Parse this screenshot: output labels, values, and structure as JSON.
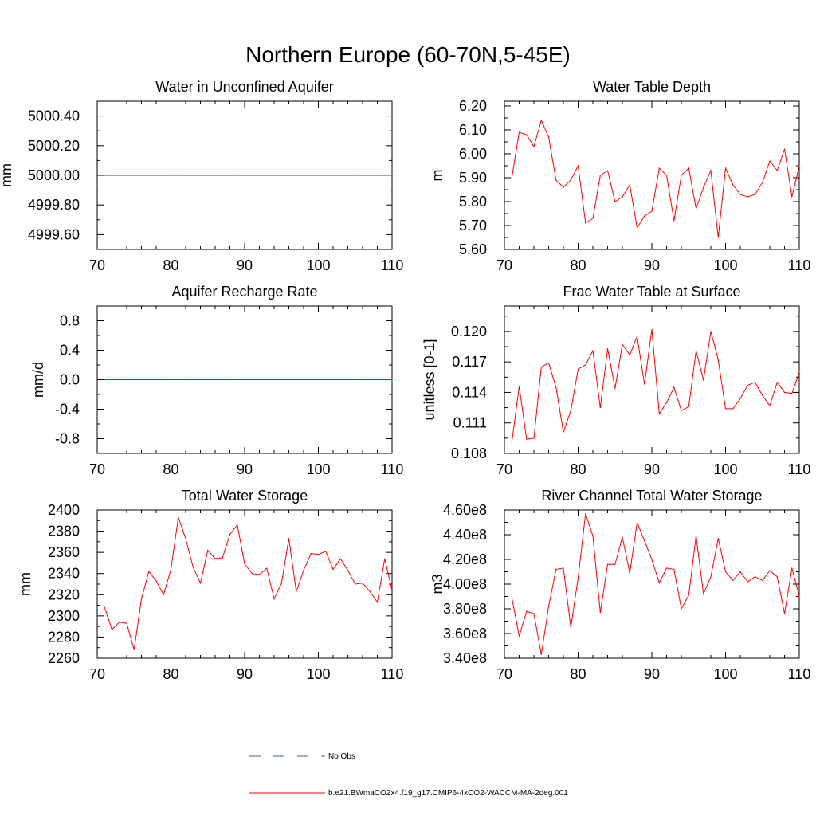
{
  "figure": {
    "title": "Northern Europe (60-70N,5-45E)"
  },
  "legend": {
    "entries": [
      {
        "label": "No Obs",
        "color": "#3f5fbf",
        "dash": "dashed"
      },
      {
        "label": "b.e21.BWmaCO2x4.f19_g17.CMIP6-4xCO2-WACCM-MA-2deg.001",
        "color": "#ff0000",
        "dash": "solid"
      }
    ]
  },
  "chart_data": [
    {
      "type": "line",
      "title": "Water in Unconfined Aquifer",
      "ylabel": "mm",
      "xlabel": "",
      "xlim": [
        70,
        110
      ],
      "ylim": [
        4999.5,
        5000.5
      ],
      "xticks": [
        "70",
        "80",
        "90",
        "100",
        "110"
      ],
      "yticks": [
        {
          "v": 4999.6,
          "label": "4999.60"
        },
        {
          "v": 4999.8,
          "label": "4999.80"
        },
        {
          "v": 5000.0,
          "label": "5000.00"
        },
        {
          "v": 5000.2,
          "label": "5000.20"
        },
        {
          "v": 5000.4,
          "label": "5000.40"
        }
      ],
      "series": [
        {
          "color": "#ff0000",
          "x": [
            71,
            72,
            73,
            74,
            75,
            76,
            77,
            78,
            79,
            80,
            81,
            82,
            83,
            84,
            85,
            86,
            87,
            88,
            89,
            90,
            91,
            92,
            93,
            94,
            95,
            96,
            97,
            98,
            99,
            100,
            101,
            102,
            103,
            104,
            105,
            106,
            107,
            108,
            109,
            110
          ],
          "values": [
            5000,
            5000,
            5000,
            5000,
            5000,
            5000,
            5000,
            5000,
            5000,
            5000,
            5000,
            5000,
            5000,
            5000,
            5000,
            5000,
            5000,
            5000,
            5000,
            5000,
            5000,
            5000,
            5000,
            5000,
            5000,
            5000,
            5000,
            5000,
            5000,
            5000,
            5000,
            5000,
            5000,
            5000,
            5000,
            5000,
            5000,
            5000,
            5000,
            5000
          ]
        }
      ]
    },
    {
      "type": "line",
      "title": "Water Table Depth",
      "ylabel": "m",
      "xlabel": "",
      "xlim": [
        70,
        110
      ],
      "ylim": [
        5.6,
        6.22
      ],
      "xticks": [
        "70",
        "80",
        "90",
        "100",
        "110"
      ],
      "yticks": [
        {
          "v": 5.6,
          "label": "5.60"
        },
        {
          "v": 5.7,
          "label": "5.70"
        },
        {
          "v": 5.8,
          "label": "5.80"
        },
        {
          "v": 5.9,
          "label": "5.90"
        },
        {
          "v": 6.0,
          "label": "6.00"
        },
        {
          "v": 6.1,
          "label": "6.10"
        },
        {
          "v": 6.2,
          "label": "6.20"
        }
      ],
      "series": [
        {
          "color": "#ff0000",
          "x": [
            71,
            72,
            73,
            74,
            75,
            76,
            77,
            78,
            79,
            80,
            81,
            82,
            83,
            84,
            85,
            86,
            87,
            88,
            89,
            90,
            91,
            92,
            93,
            94,
            95,
            96,
            97,
            98,
            99,
            100,
            101,
            102,
            103,
            104,
            105,
            106,
            107,
            108,
            109,
            110
          ],
          "values": [
            5.9,
            6.09,
            6.08,
            6.03,
            6.14,
            6.07,
            5.89,
            5.86,
            5.89,
            5.95,
            5.71,
            5.73,
            5.91,
            5.93,
            5.8,
            5.82,
            5.87,
            5.69,
            5.74,
            5.76,
            5.94,
            5.91,
            5.72,
            5.91,
            5.94,
            5.77,
            5.86,
            5.93,
            5.65,
            5.94,
            5.87,
            5.83,
            5.82,
            5.83,
            5.88,
            5.97,
            5.93,
            6.02,
            5.82,
            5.95
          ]
        }
      ]
    },
    {
      "type": "line",
      "title": "Aquifer Recharge Rate",
      "ylabel": "mm/d",
      "xlabel": "",
      "xlim": [
        70,
        110
      ],
      "ylim": [
        -1.0,
        1.0
      ],
      "xticks": [
        "70",
        "80",
        "90",
        "100",
        "110"
      ],
      "yticks": [
        {
          "v": -0.8,
          "label": "-0.8"
        },
        {
          "v": -0.4,
          "label": "-0.4"
        },
        {
          "v": 0.0,
          "label": "0.0"
        },
        {
          "v": 0.4,
          "label": "0.4"
        },
        {
          "v": 0.8,
          "label": "0.8"
        }
      ],
      "series": [
        {
          "color": "#ff0000",
          "x": [
            71,
            72,
            73,
            74,
            75,
            76,
            77,
            78,
            79,
            80,
            81,
            82,
            83,
            84,
            85,
            86,
            87,
            88,
            89,
            90,
            91,
            92,
            93,
            94,
            95,
            96,
            97,
            98,
            99,
            100,
            101,
            102,
            103,
            104,
            105,
            106,
            107,
            108,
            109,
            110
          ],
          "values": [
            0,
            0,
            0,
            0,
            0,
            0,
            0,
            0,
            0,
            0,
            0,
            0,
            0,
            0,
            0,
            0,
            0,
            0,
            0,
            0,
            0,
            0,
            0,
            0,
            0,
            0,
            0,
            0,
            0,
            0,
            0,
            0,
            0,
            0,
            0,
            0,
            0,
            0,
            0,
            0
          ]
        }
      ]
    },
    {
      "type": "line",
      "title": "Frac Water Table at Surface",
      "ylabel": "unitless [0-1]",
      "xlabel": "",
      "xlim": [
        70,
        110
      ],
      "ylim": [
        0.108,
        0.1225
      ],
      "xticks": [
        "70",
        "80",
        "90",
        "100",
        "110"
      ],
      "yticks": [
        {
          "v": 0.108,
          "label": "0.108"
        },
        {
          "v": 0.111,
          "label": "0.111"
        },
        {
          "v": 0.114,
          "label": "0.114"
        },
        {
          "v": 0.117,
          "label": "0.117"
        },
        {
          "v": 0.12,
          "label": "0.120"
        }
      ],
      "series": [
        {
          "color": "#ff0000",
          "x": [
            71,
            72,
            73,
            74,
            75,
            76,
            77,
            78,
            79,
            80,
            81,
            82,
            83,
            84,
            85,
            86,
            87,
            88,
            89,
            90,
            91,
            92,
            93,
            94,
            95,
            96,
            97,
            98,
            99,
            100,
            101,
            102,
            103,
            104,
            105,
            106,
            107,
            108,
            109,
            110
          ],
          "values": [
            0.1091,
            0.1146,
            0.1094,
            0.1095,
            0.1165,
            0.1169,
            0.1145,
            0.1101,
            0.1122,
            0.1163,
            0.1167,
            0.1181,
            0.1125,
            0.1183,
            0.1144,
            0.1187,
            0.1177,
            0.1195,
            0.1148,
            0.1202,
            0.1119,
            0.113,
            0.1145,
            0.1122,
            0.1126,
            0.1181,
            0.1152,
            0.12,
            0.1172,
            0.1124,
            0.1124,
            0.1134,
            0.1147,
            0.115,
            0.1137,
            0.1127,
            0.115,
            0.114,
            0.1139,
            0.116
          ]
        }
      ]
    },
    {
      "type": "line",
      "title": "Total Water Storage",
      "ylabel": "mm",
      "xlabel": "",
      "xlim": [
        70,
        110
      ],
      "ylim": [
        2260,
        2400
      ],
      "xticks": [
        "70",
        "80",
        "90",
        "100",
        "110"
      ],
      "yticks": [
        {
          "v": 2260,
          "label": "2260"
        },
        {
          "v": 2280,
          "label": "2280"
        },
        {
          "v": 2300,
          "label": "2300"
        },
        {
          "v": 2320,
          "label": "2320"
        },
        {
          "v": 2340,
          "label": "2340"
        },
        {
          "v": 2360,
          "label": "2360"
        },
        {
          "v": 2380,
          "label": "2380"
        },
        {
          "v": 2400,
          "label": "2400"
        }
      ],
      "series": [
        {
          "color": "#ff0000",
          "x": [
            71,
            72,
            73,
            74,
            75,
            76,
            77,
            78,
            79,
            80,
            81,
            82,
            83,
            84,
            85,
            86,
            87,
            88,
            89,
            90,
            91,
            92,
            93,
            94,
            95,
            96,
            97,
            98,
            99,
            100,
            101,
            102,
            103,
            104,
            105,
            106,
            107,
            108,
            109,
            110
          ],
          "values": [
            2308,
            2287,
            2294,
            2293,
            2268,
            2316,
            2342,
            2333,
            2320,
            2344,
            2393,
            2373,
            2346,
            2331,
            2362,
            2354,
            2355,
            2377,
            2386,
            2349,
            2340,
            2339,
            2345,
            2316,
            2331,
            2373,
            2323,
            2343,
            2359,
            2358,
            2361,
            2344,
            2354,
            2343,
            2330,
            2331,
            2323,
            2313,
            2354,
            2324
          ]
        }
      ]
    },
    {
      "type": "line",
      "title": "River Channel Total Water Storage",
      "ylabel": "m3",
      "xlabel": "",
      "xlim": [
        70,
        110
      ],
      "ylim": [
        340000000,
        460000000
      ],
      "xticks": [
        "70",
        "80",
        "90",
        "100",
        "110"
      ],
      "yticks": [
        {
          "v": 340000000,
          "label": "3.40e8"
        },
        {
          "v": 360000000,
          "label": "3.60e8"
        },
        {
          "v": 380000000,
          "label": "3.80e8"
        },
        {
          "v": 400000000,
          "label": "4.00e8"
        },
        {
          "v": 420000000,
          "label": "4.20e8"
        },
        {
          "v": 440000000,
          "label": "4.40e8"
        },
        {
          "v": 460000000,
          "label": "4.60e8"
        }
      ],
      "series": [
        {
          "color": "#ff0000",
          "x": [
            71,
            72,
            73,
            74,
            75,
            76,
            77,
            78,
            79,
            80,
            81,
            82,
            83,
            84,
            85,
            86,
            87,
            88,
            89,
            90,
            91,
            92,
            93,
            94,
            95,
            96,
            97,
            98,
            99,
            100,
            101,
            102,
            103,
            104,
            105,
            106,
            107,
            108,
            109,
            110
          ],
          "values": [
            389000000,
            358000000,
            378000000,
            376000000,
            343000000,
            382000000,
            412000000,
            413000000,
            365000000,
            405000000,
            457000000,
            439000000,
            377000000,
            416000000,
            416000000,
            438000000,
            409000000,
            450000000,
            435000000,
            420000000,
            401000000,
            413000000,
            412000000,
            380000000,
            391000000,
            439000000,
            392000000,
            406000000,
            437000000,
            410000000,
            403000000,
            410000000,
            402000000,
            406000000,
            403000000,
            411000000,
            406000000,
            376000000,
            413000000,
            390000000
          ]
        }
      ]
    }
  ]
}
